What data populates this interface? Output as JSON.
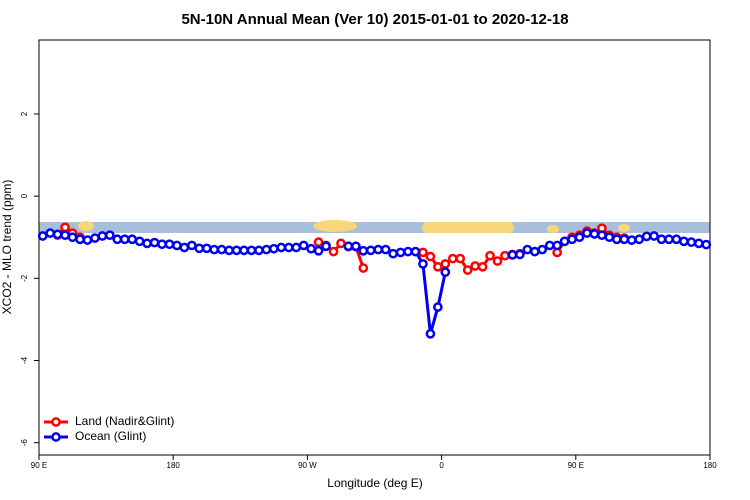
{
  "chart_data": {
    "type": "line",
    "title": "5N-10N Annual Mean (Ver 10)   2015-01-01 to 2020-12-18",
    "xlabel": "Longitude (deg E)",
    "ylabel": "XCO2 - MLO trend (ppm)",
    "xlim": [
      90,
      540
    ],
    "ylim": [
      -6.3,
      3.8
    ],
    "xticks": [
      {
        "value": 90,
        "label": "90 E"
      },
      180,
      {
        "value": 270,
        "label": "90 W"
      },
      {
        "value": 360,
        "label": "0"
      },
      {
        "value": 450,
        "label": "90 E"
      },
      {
        "value": 540,
        "label": "180"
      }
    ],
    "yticks": [
      -6,
      -4,
      -2,
      0,
      2
    ],
    "legend": "bottom-left",
    "x": [
      92.5,
      97.5,
      102.5,
      107.5,
      112.5,
      117.5,
      122.5,
      127.5,
      132.5,
      137.5,
      142.5,
      147.5,
      152.5,
      157.5,
      162.5,
      167.5,
      172.5,
      177.5,
      182.5,
      187.5,
      192.5,
      197.5,
      202.5,
      207.5,
      212.5,
      217.5,
      222.5,
      227.5,
      232.5,
      237.5,
      242.5,
      247.5,
      252.5,
      257.5,
      262.5,
      267.5,
      272.5,
      277.5,
      282.5,
      287.5,
      292.5,
      297.5,
      302.5,
      307.5,
      312.5,
      317.5,
      322.5,
      327.5,
      332.5,
      337.5,
      342.5,
      347.5,
      352.5,
      357.5,
      362.5,
      367.5,
      372.5,
      377.5,
      382.5,
      387.5,
      392.5,
      397.5,
      402.5,
      407.5,
      412.5,
      417.5,
      422.5,
      427.5,
      432.5,
      437.5,
      442.5,
      447.5,
      452.5,
      457.5,
      462.5,
      467.5,
      472.5,
      477.5,
      482.5,
      487.5,
      492.5,
      497.5,
      502.5,
      507.5,
      512.5,
      517.5,
      522.5,
      527.5,
      532.5,
      537.5
    ],
    "series": [
      {
        "name": "Land (Nadir&Glint)",
        "color": "#ff0000",
        "values": [
          null,
          null,
          -0.95,
          -0.76,
          -0.9,
          -1.0,
          null,
          null,
          null,
          null,
          null,
          null,
          null,
          null,
          null,
          null,
          null,
          null,
          null,
          null,
          null,
          null,
          null,
          null,
          null,
          null,
          null,
          null,
          null,
          null,
          null,
          null,
          null,
          null,
          null,
          null,
          null,
          -1.12,
          -1.2,
          -1.35,
          -1.15,
          -1.23,
          -1.23,
          -1.75,
          null,
          null,
          null,
          null,
          null,
          null,
          null,
          -1.37,
          -1.47,
          -1.72,
          -1.65,
          -1.52,
          -1.52,
          -1.8,
          -1.7,
          -1.72,
          -1.45,
          -1.58,
          -1.45,
          -1.42,
          -1.4,
          null,
          null,
          null,
          null,
          -1.37,
          -1.1,
          -1.0,
          -0.95,
          -0.85,
          -0.9,
          -0.78,
          -0.95,
          -1.0,
          -1.02,
          null,
          null,
          null,
          null,
          null,
          null,
          null,
          null,
          null,
          null,
          null
        ]
      },
      {
        "name": "Ocean (Glint)",
        "color": "#0000ee",
        "values": [
          -0.97,
          -0.9,
          -0.93,
          -0.95,
          -1.0,
          -1.05,
          -1.07,
          -1.02,
          -0.97,
          -0.95,
          -1.05,
          -1.05,
          -1.05,
          -1.1,
          -1.15,
          -1.13,
          -1.17,
          -1.17,
          -1.2,
          -1.25,
          -1.2,
          -1.27,
          -1.27,
          -1.3,
          -1.3,
          -1.32,
          -1.32,
          -1.32,
          -1.32,
          -1.32,
          -1.3,
          -1.28,
          -1.25,
          -1.25,
          -1.25,
          -1.2,
          -1.28,
          -1.33,
          -1.22,
          null,
          null,
          -1.22,
          -1.22,
          -1.33,
          -1.32,
          -1.3,
          -1.3,
          -1.4,
          -1.37,
          -1.35,
          -1.35,
          -1.65,
          -3.35,
          -2.7,
          -1.85,
          null,
          null,
          null,
          null,
          null,
          null,
          null,
          null,
          -1.43,
          -1.42,
          -1.3,
          -1.35,
          -1.3,
          -1.2,
          -1.2,
          -1.1,
          -1.05,
          -1.0,
          -0.9,
          -0.92,
          -0.95,
          -1.0,
          -1.05,
          -1.05,
          -1.07,
          -1.05,
          -0.98,
          -0.97,
          -1.05,
          -1.05,
          -1.05,
          -1.1,
          -1.12,
          -1.15,
          -1.18
        ]
      }
    ]
  }
}
